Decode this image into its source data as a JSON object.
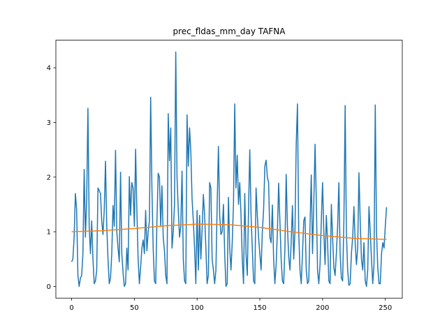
{
  "chart_data": {
    "type": "line",
    "title": "prec_fldas_mm_day TAFNA",
    "x": [
      0,
      1,
      2,
      3,
      4,
      5,
      6,
      7,
      8,
      9,
      10,
      11,
      12,
      13,
      14,
      15,
      16,
      17,
      18,
      19,
      20,
      21,
      22,
      23,
      24,
      25,
      26,
      27,
      28,
      29,
      30,
      31,
      32,
      33,
      34,
      35,
      36,
      37,
      38,
      39,
      40,
      41,
      42,
      43,
      44,
      45,
      46,
      47,
      48,
      49,
      50,
      51,
      52,
      53,
      54,
      55,
      56,
      57,
      58,
      59,
      60,
      61,
      62,
      63,
      64,
      65,
      66,
      67,
      68,
      69,
      70,
      71,
      72,
      73,
      74,
      75,
      76,
      77,
      78,
      79,
      80,
      81,
      82,
      83,
      84,
      85,
      86,
      87,
      88,
      89,
      90,
      91,
      92,
      93,
      94,
      95,
      96,
      97,
      98,
      99,
      100,
      101,
      102,
      103,
      104,
      105,
      106,
      107,
      108,
      109,
      110,
      111,
      112,
      113,
      114,
      115,
      116,
      117,
      118,
      119,
      120,
      121,
      122,
      123,
      124,
      125,
      126,
      127,
      128,
      129,
      130,
      131,
      132,
      133,
      134,
      135,
      136,
      137,
      138,
      139,
      140,
      141,
      142,
      143,
      144,
      145,
      146,
      147,
      148,
      149,
      150,
      151,
      152,
      153,
      154,
      155,
      156,
      157,
      158,
      159,
      160,
      161,
      162,
      163,
      164,
      165,
      166,
      167,
      168,
      169,
      170,
      171,
      172,
      173,
      174,
      175,
      176,
      177,
      178,
      179,
      180,
      181,
      182,
      183,
      184,
      185,
      186,
      187,
      188,
      189,
      190,
      191,
      192,
      193,
      194,
      195,
      196,
      197,
      198,
      199,
      200,
      201,
      202,
      203,
      204,
      205,
      206,
      207,
      208,
      209,
      210,
      211,
      212,
      213,
      214,
      215,
      216,
      217,
      218,
      219,
      220,
      221,
      222,
      223,
      224,
      225,
      226,
      227,
      228,
      229,
      230,
      231,
      232,
      233,
      234,
      235,
      236,
      237,
      238,
      239,
      240,
      241,
      242,
      243,
      244,
      245,
      246,
      247,
      248,
      249,
      250,
      251
    ],
    "series": [
      {
        "color": "#1f77b4",
        "values": [
          0.45,
          0.5,
          0.9,
          1.7,
          1.4,
          0.2,
          0.0,
          0.15,
          0.2,
          0.6,
          2.14,
          0.9,
          1.6,
          3.26,
          1.1,
          0.6,
          1.2,
          0.5,
          0.05,
          0.1,
          0.3,
          1.8,
          1.75,
          1.7,
          1.2,
          0.95,
          1.4,
          2.29,
          1.1,
          0.5,
          0.05,
          0.15,
          0.6,
          1.48,
          1.1,
          2.49,
          1.0,
          0.7,
          0.45,
          2.09,
          0.6,
          0.25,
          0.0,
          0.05,
          0.7,
          0.3,
          2.01,
          1.3,
          1.9,
          1.8,
          1.1,
          2.51,
          1.4,
          0.5,
          0.05,
          0.35,
          0.7,
          0.85,
          0.6,
          1.39,
          0.65,
          1.0,
          1.2,
          3.46,
          1.8,
          0.7,
          0.1,
          0.05,
          1.2,
          2.07,
          2.0,
          1.1,
          1.84,
          0.9,
          0.65,
          0.2,
          0.05,
          3.16,
          2.3,
          2.9,
          0.7,
          1.0,
          1.5,
          4.29,
          2.0,
          1.4,
          0.9,
          1.1,
          2.11,
          0.5,
          0.1,
          0.05,
          3.14,
          2.2,
          2.9,
          2.47,
          1.6,
          1.2,
          0.7,
          0.05,
          1.39,
          0.3,
          1.3,
          0.5,
          1.05,
          1.68,
          1.3,
          0.7,
          0.05,
          0.2,
          1.9,
          1.8,
          0.5,
          0.3,
          0.05,
          0.3,
          1.5,
          2.56,
          1.3,
          0.95,
          1.0,
          1.5,
          0.6,
          0.0,
          0.05,
          1.63,
          0.7,
          0.3,
          0.8,
          1.5,
          3.34,
          1.8,
          2.4,
          1.5,
          1.9,
          1.3,
          0.5,
          0.05,
          1.7,
          0.6,
          0.2,
          1.4,
          2.5,
          1.3,
          0.7,
          0.1,
          0.05,
          1.8,
          1.3,
          0.9,
          0.6,
          0.3,
          1.0,
          1.4,
          2.2,
          2.31,
          2.0,
          1.9,
          0.9,
          0.8,
          1.49,
          0.5,
          0.05,
          0.4,
          1.0,
          1.89,
          1.2,
          0.5,
          0.1,
          0.05,
          0.7,
          2.05,
          1.1,
          0.55,
          0.3,
          0.8,
          1.48,
          0.5,
          1.0,
          2.6,
          3.34,
          1.0,
          0.3,
          0.05,
          0.6,
          1.2,
          1.27,
          0.3,
          0.05,
          0.1,
          1.1,
          2.04,
          0.6,
          1.5,
          2.6,
          1.6,
          0.3,
          0.05,
          0.4,
          1.2,
          1.9,
          1.0,
          0.4,
          1.3,
          0.8,
          0.1,
          0.05,
          1.5,
          0.9,
          0.35,
          0.2,
          0.6,
          1.1,
          1.9,
          0.6,
          0.15,
          0.1,
          1.2,
          3.31,
          1.0,
          0.3,
          0.02,
          0.05,
          0.6,
          0.9,
          1.46,
          0.8,
          0.4,
          0.7,
          2.08,
          1.2,
          0.5,
          0.3,
          0.8,
          0.1,
          0.0,
          0.3,
          1.46,
          1.0,
          0.5,
          0.05,
          0.4,
          3.32,
          1.0,
          0.35,
          0.05,
          0.05,
          0.6,
          0.8,
          0.7,
          1.1,
          1.45
        ]
      },
      {
        "color": "#ff7f0e",
        "x": [
          0,
          25,
          50,
          75,
          100,
          125,
          150,
          175,
          200,
          225,
          251
        ],
        "values": [
          1.0,
          1.02,
          1.06,
          1.11,
          1.14,
          1.13,
          1.08,
          1.0,
          0.93,
          0.88,
          0.86
        ]
      }
    ],
    "xlim": [
      -12.55,
      263.55
    ],
    "ylim": [
      -0.215,
      4.505
    ],
    "xticks": [
      0,
      50,
      100,
      150,
      200,
      250
    ],
    "yticks": [
      0,
      1,
      2,
      3,
      4
    ]
  }
}
